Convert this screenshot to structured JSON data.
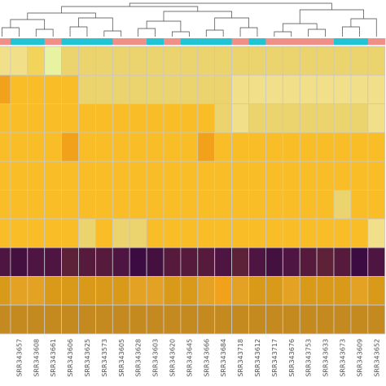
{
  "chart_data": {
    "type": "heatmap",
    "title": "",
    "xlabel": "",
    "ylabel": "",
    "legend": "none",
    "grid": true,
    "columns": [
      {
        "label": "",
        "group": "salmon"
      },
      {
        "label": "SRR343657",
        "group": "cyan"
      },
      {
        "label": "SRR343608",
        "group": "cyan"
      },
      {
        "label": "SRR343661",
        "group": "salmon"
      },
      {
        "label": "SRR343606",
        "group": "cyan"
      },
      {
        "label": "SRR343625",
        "group": "cyan"
      },
      {
        "label": "SRR343573",
        "group": "cyan"
      },
      {
        "label": "SRR343605",
        "group": "salmon"
      },
      {
        "label": "SRR343628",
        "group": "salmon"
      },
      {
        "label": "SRR343603",
        "group": "cyan"
      },
      {
        "label": "SRR343620",
        "group": "salmon"
      },
      {
        "label": "SRR343645",
        "group": "cyan"
      },
      {
        "label": "SRR343666",
        "group": "cyan"
      },
      {
        "label": "SRR343684",
        "group": "cyan"
      },
      {
        "label": "SRR343718",
        "group": "salmon"
      },
      {
        "label": "SRR343612",
        "group": "cyan"
      },
      {
        "label": "SRR343717",
        "group": "salmon"
      },
      {
        "label": "SRR343676",
        "group": "salmon"
      },
      {
        "label": "SRR343753",
        "group": "salmon"
      },
      {
        "label": "SRR343633",
        "group": "salmon"
      },
      {
        "label": "SRR343673",
        "group": "cyan"
      },
      {
        "label": "SRR343609",
        "group": "cyan"
      },
      {
        "label": "SRR343652",
        "group": "salmon"
      }
    ],
    "rows": [
      {
        "values": [
          2,
          2,
          3,
          1,
          6,
          6,
          6,
          6,
          6,
          6,
          6,
          6,
          6,
          6,
          6,
          6,
          6,
          6,
          6,
          6,
          6,
          6,
          6
        ]
      },
      {
        "values": [
          8,
          7,
          7,
          7,
          7,
          6,
          6,
          6,
          6,
          6,
          6,
          6,
          6,
          6,
          2,
          2,
          2,
          2,
          2,
          2,
          2,
          2,
          2
        ]
      },
      {
        "values": [
          7,
          7,
          7,
          7,
          7,
          7,
          7,
          7,
          7,
          7,
          7,
          7,
          7,
          6,
          2,
          6,
          6,
          6,
          6,
          6,
          6,
          6,
          2
        ]
      },
      {
        "values": [
          7,
          7,
          7,
          7,
          8,
          7,
          7,
          7,
          7,
          7,
          7,
          7,
          8,
          7,
          7,
          7,
          7,
          7,
          7,
          7,
          7,
          7,
          7
        ]
      },
      {
        "values": [
          7,
          7,
          7,
          7,
          7,
          7,
          7,
          7,
          7,
          7,
          7,
          7,
          7,
          7,
          7,
          7,
          7,
          7,
          7,
          7,
          7,
          7,
          7
        ]
      },
      {
        "values": [
          7,
          7,
          7,
          7,
          7,
          7,
          7,
          7,
          7,
          7,
          7,
          7,
          7,
          7,
          7,
          7,
          7,
          7,
          7,
          7,
          6,
          7,
          7
        ]
      },
      {
        "values": [
          7,
          7,
          7,
          7,
          7,
          6,
          7,
          6,
          6,
          7,
          7,
          7,
          7,
          7,
          7,
          7,
          7,
          7,
          7,
          7,
          7,
          7,
          2
        ]
      },
      {
        "values": [
          22,
          23,
          22,
          22,
          20,
          21,
          21,
          22,
          24,
          23,
          21,
          21,
          21,
          22,
          20,
          22,
          23,
          22,
          21,
          20,
          21,
          24,
          22
        ]
      },
      {
        "values": [
          10,
          9,
          9,
          10,
          10,
          10,
          10,
          10,
          9,
          9,
          10,
          10,
          9,
          8,
          9,
          10,
          10,
          9,
          10,
          10,
          10,
          9,
          10
        ]
      },
      {
        "values": [
          12,
          12,
          12,
          12,
          12,
          12,
          12,
          12,
          12,
          12,
          12,
          12,
          12,
          12,
          12,
          12,
          12,
          12,
          12,
          12,
          12,
          12,
          12
        ]
      }
    ],
    "colors": {
      "scale": [
        "#f2fcb4",
        "#e8f3a2",
        "#f1df8a",
        "#f2d45a",
        "#f6c63a",
        "#fbbf1d",
        "#ebd46e",
        "#f9be27",
        "#f1a21a",
        "#e3a224",
        "#d99a1a",
        "#c9881a",
        "#c48a1f",
        "#b77123",
        "#a86a2a",
        "#9a5a2b",
        "#8b4d2e",
        "#7a3a30",
        "#6e2f33",
        "#652a3b",
        "#5d2138",
        "#551a3c",
        "#4e1442",
        "#44103f",
        "#3c0b42"
      ],
      "group_salmon": "#f08f86",
      "group_cyan": "#22c4d4",
      "grid": "#c8c8c8",
      "dendrogram": "#444444"
    }
  }
}
